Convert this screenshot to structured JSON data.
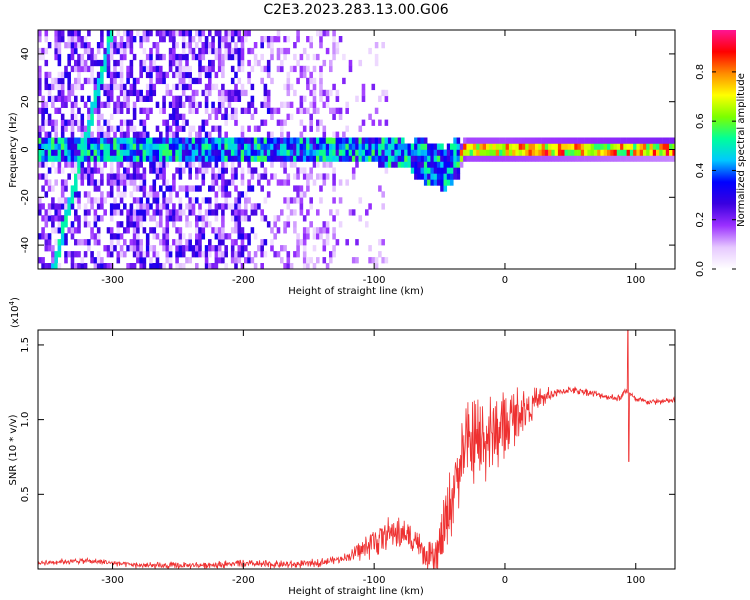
{
  "figure_title": "C2E3.2023.283.13.00.G06",
  "colors": {
    "snr_line": "#ee3030",
    "axis": "#000000",
    "spectrogram_background": "#ffffff",
    "colormap": [
      "#ffffff",
      "#e6c8ff",
      "#9b30ff",
      "#3a00e0",
      "#0000ff",
      "#00c8ff",
      "#00ff9a",
      "#7cff00",
      "#ffff00",
      "#ff8c00",
      "#ff0000",
      "#ff1493"
    ]
  },
  "chart_data": [
    {
      "type": "heatmap",
      "title": "Spectrogram",
      "xlabel": "Height of straight line (km)",
      "ylabel": "Frequency (Hz)",
      "xlim": [
        -357,
        130
      ],
      "ylim": [
        -50,
        50
      ],
      "xticks": [
        -300,
        -200,
        -100,
        0,
        100
      ],
      "yticks": [
        -40,
        -20,
        0,
        20,
        40
      ],
      "xtick_labels": [
        "-300",
        "-200",
        "-100",
        "0",
        "100"
      ],
      "ytick_labels": [
        "-40",
        "-20",
        "0",
        "20",
        "40"
      ],
      "colorbar": {
        "label": "Normalized spectral amplitude",
        "range": [
          0.0,
          0.97
        ],
        "ticks": [
          0.0,
          0.2,
          0.4,
          0.6,
          0.8
        ],
        "tick_labels": [
          "0.0",
          "0.2",
          "0.4",
          "0.6",
          "0.8"
        ]
      },
      "features": [
        {
          "name": "main-signal-band",
          "x_range": [
            -357,
            130
          ],
          "center_frequency_hz": [
            [
              -357,
              0
            ],
            [
              -100,
              0
            ],
            [
              -70,
              -3
            ],
            [
              -45,
              -8
            ],
            [
              -38,
              -4
            ],
            [
              -30,
              0
            ],
            [
              0,
              0
            ],
            [
              130,
              1
            ]
          ],
          "width_hz": 10,
          "amplitude": 0.35
        },
        {
          "name": "strong-direct-band",
          "x_range": [
            -35,
            130
          ],
          "center_frequency_hz": 1,
          "amplitude": 0.8
        },
        {
          "name": "diagonal-interference-line",
          "points": [
            [
              -345,
              -50
            ],
            [
              -300,
              50
            ]
          ],
          "amplitude": 0.45
        },
        {
          "name": "noise-region",
          "x_range": [
            -357,
            -90
          ],
          "amplitude": 0.15
        }
      ]
    },
    {
      "type": "line",
      "title": "SNR",
      "xlabel": "Height of straight line (km)",
      "ylabel": "SNR (10 * v/v)",
      "y_multiplier": "(x10^4)",
      "y_multiplier_base": "(x10",
      "y_multiplier_exp": "4",
      "y_multiplier_close": ")",
      "xlim": [
        -357,
        130
      ],
      "ylim": [
        0,
        1.6
      ],
      "xticks": [
        -300,
        -200,
        -100,
        0,
        100
      ],
      "yticks": [
        0.5,
        1.0,
        1.5
      ],
      "xtick_labels": [
        "-300",
        "-200",
        "-100",
        "0",
        "100"
      ],
      "ytick_labels": [
        "0.5",
        "1.0",
        "1.5"
      ],
      "series": [
        {
          "name": "SNR",
          "points": [
            [
              -357,
              0.04
            ],
            [
              -340,
              0.05
            ],
            [
              -320,
              0.055
            ],
            [
              -300,
              0.04
            ],
            [
              -280,
              0.025
            ],
            [
              -260,
              0.02
            ],
            [
              -240,
              0.025
            ],
            [
              -220,
              0.03
            ],
            [
              -200,
              0.035
            ],
            [
              -180,
              0.03
            ],
            [
              -160,
              0.03
            ],
            [
              -140,
              0.045
            ],
            [
              -125,
              0.07
            ],
            [
              -115,
              0.1
            ],
            [
              -105,
              0.15
            ],
            [
              -95,
              0.22
            ],
            [
              -85,
              0.25
            ],
            [
              -75,
              0.22
            ],
            [
              -68,
              0.2
            ],
            [
              -62,
              0.08
            ],
            [
              -55,
              0.05
            ],
            [
              -50,
              0.12
            ],
            [
              -45,
              0.3
            ],
            [
              -40,
              0.5
            ],
            [
              -35,
              0.7
            ],
            [
              -30,
              0.8
            ],
            [
              -25,
              0.82
            ],
            [
              -20,
              0.85
            ],
            [
              -10,
              0.9
            ],
            [
              0,
              0.95
            ],
            [
              10,
              1.05
            ],
            [
              20,
              1.1
            ],
            [
              30,
              1.15
            ],
            [
              40,
              1.18
            ],
            [
              50,
              1.2
            ],
            [
              60,
              1.19
            ],
            [
              70,
              1.17
            ],
            [
              80,
              1.15
            ],
            [
              88,
              1.14
            ],
            [
              93,
              1.2
            ],
            [
              100,
              1.13
            ],
            [
              110,
              1.12
            ],
            [
              120,
              1.12
            ],
            [
              130,
              1.13
            ]
          ],
          "noise_amplitude": [
            [
              -357,
              0.02
            ],
            [
              -120,
              0.03
            ],
            [
              -100,
              0.12
            ],
            [
              -60,
              0.1
            ],
            [
              -45,
              0.25
            ],
            [
              -20,
              0.35
            ],
            [
              0,
              0.25
            ],
            [
              20,
              0.12
            ],
            [
              40,
              0.03
            ],
            [
              130,
              0.02
            ]
          ],
          "spike": {
            "x": 94,
            "max": 1.6,
            "min": 0.72
          }
        }
      ]
    }
  ]
}
